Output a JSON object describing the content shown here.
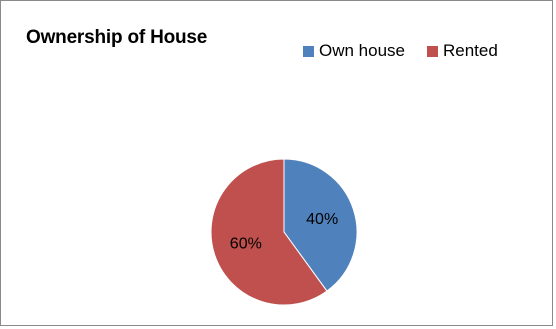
{
  "chart_data": {
    "type": "pie",
    "title": "Ownership of House",
    "categories": [
      "Own house",
      "Rented"
    ],
    "values": [
      40,
      60
    ],
    "labels": [
      "40%",
      "60%"
    ],
    "colors": [
      "#4F81BD",
      "#C0504D"
    ],
    "legend_position": "top-right",
    "start_angle_deg": 0,
    "direction": "clockwise"
  }
}
